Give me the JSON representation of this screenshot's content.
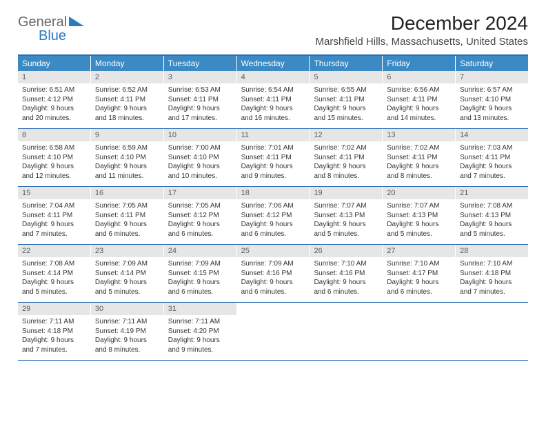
{
  "brand": {
    "text1": "General",
    "text2": "Blue",
    "text1_color": "#6a6a6a",
    "text2_color": "#2a7bbf",
    "triangle_color": "#2a7bbf"
  },
  "title": "December 2024",
  "subtitle": "Marshfield Hills, Massachusetts, United States",
  "header_bg": "#3b8ac4",
  "header_text_color": "#ffffff",
  "rule_color": "#2a6db5",
  "daynum_bg": "#e6e6e6",
  "daynum_color": "#5a5a5a",
  "day_names": [
    "Sunday",
    "Monday",
    "Tuesday",
    "Wednesday",
    "Thursday",
    "Friday",
    "Saturday"
  ],
  "weeks": [
    [
      {
        "d": "1",
        "sr": "6:51 AM",
        "ss": "4:12 PM",
        "dl": "9 hours and 20 minutes."
      },
      {
        "d": "2",
        "sr": "6:52 AM",
        "ss": "4:11 PM",
        "dl": "9 hours and 18 minutes."
      },
      {
        "d": "3",
        "sr": "6:53 AM",
        "ss": "4:11 PM",
        "dl": "9 hours and 17 minutes."
      },
      {
        "d": "4",
        "sr": "6:54 AM",
        "ss": "4:11 PM",
        "dl": "9 hours and 16 minutes."
      },
      {
        "d": "5",
        "sr": "6:55 AM",
        "ss": "4:11 PM",
        "dl": "9 hours and 15 minutes."
      },
      {
        "d": "6",
        "sr": "6:56 AM",
        "ss": "4:11 PM",
        "dl": "9 hours and 14 minutes."
      },
      {
        "d": "7",
        "sr": "6:57 AM",
        "ss": "4:10 PM",
        "dl": "9 hours and 13 minutes."
      }
    ],
    [
      {
        "d": "8",
        "sr": "6:58 AM",
        "ss": "4:10 PM",
        "dl": "9 hours and 12 minutes."
      },
      {
        "d": "9",
        "sr": "6:59 AM",
        "ss": "4:10 PM",
        "dl": "9 hours and 11 minutes."
      },
      {
        "d": "10",
        "sr": "7:00 AM",
        "ss": "4:10 PM",
        "dl": "9 hours and 10 minutes."
      },
      {
        "d": "11",
        "sr": "7:01 AM",
        "ss": "4:11 PM",
        "dl": "9 hours and 9 minutes."
      },
      {
        "d": "12",
        "sr": "7:02 AM",
        "ss": "4:11 PM",
        "dl": "9 hours and 8 minutes."
      },
      {
        "d": "13",
        "sr": "7:02 AM",
        "ss": "4:11 PM",
        "dl": "9 hours and 8 minutes."
      },
      {
        "d": "14",
        "sr": "7:03 AM",
        "ss": "4:11 PM",
        "dl": "9 hours and 7 minutes."
      }
    ],
    [
      {
        "d": "15",
        "sr": "7:04 AM",
        "ss": "4:11 PM",
        "dl": "9 hours and 7 minutes."
      },
      {
        "d": "16",
        "sr": "7:05 AM",
        "ss": "4:11 PM",
        "dl": "9 hours and 6 minutes."
      },
      {
        "d": "17",
        "sr": "7:05 AM",
        "ss": "4:12 PM",
        "dl": "9 hours and 6 minutes."
      },
      {
        "d": "18",
        "sr": "7:06 AM",
        "ss": "4:12 PM",
        "dl": "9 hours and 6 minutes."
      },
      {
        "d": "19",
        "sr": "7:07 AM",
        "ss": "4:13 PM",
        "dl": "9 hours and 5 minutes."
      },
      {
        "d": "20",
        "sr": "7:07 AM",
        "ss": "4:13 PM",
        "dl": "9 hours and 5 minutes."
      },
      {
        "d": "21",
        "sr": "7:08 AM",
        "ss": "4:13 PM",
        "dl": "9 hours and 5 minutes."
      }
    ],
    [
      {
        "d": "22",
        "sr": "7:08 AM",
        "ss": "4:14 PM",
        "dl": "9 hours and 5 minutes."
      },
      {
        "d": "23",
        "sr": "7:09 AM",
        "ss": "4:14 PM",
        "dl": "9 hours and 5 minutes."
      },
      {
        "d": "24",
        "sr": "7:09 AM",
        "ss": "4:15 PM",
        "dl": "9 hours and 6 minutes."
      },
      {
        "d": "25",
        "sr": "7:09 AM",
        "ss": "4:16 PM",
        "dl": "9 hours and 6 minutes."
      },
      {
        "d": "26",
        "sr": "7:10 AM",
        "ss": "4:16 PM",
        "dl": "9 hours and 6 minutes."
      },
      {
        "d": "27",
        "sr": "7:10 AM",
        "ss": "4:17 PM",
        "dl": "9 hours and 6 minutes."
      },
      {
        "d": "28",
        "sr": "7:10 AM",
        "ss": "4:18 PM",
        "dl": "9 hours and 7 minutes."
      }
    ],
    [
      {
        "d": "29",
        "sr": "7:11 AM",
        "ss": "4:18 PM",
        "dl": "9 hours and 7 minutes."
      },
      {
        "d": "30",
        "sr": "7:11 AM",
        "ss": "4:19 PM",
        "dl": "9 hours and 8 minutes."
      },
      {
        "d": "31",
        "sr": "7:11 AM",
        "ss": "4:20 PM",
        "dl": "9 hours and 9 minutes."
      },
      null,
      null,
      null,
      null
    ]
  ],
  "labels": {
    "sunrise": "Sunrise:",
    "sunset": "Sunset:",
    "daylight": "Daylight:"
  }
}
